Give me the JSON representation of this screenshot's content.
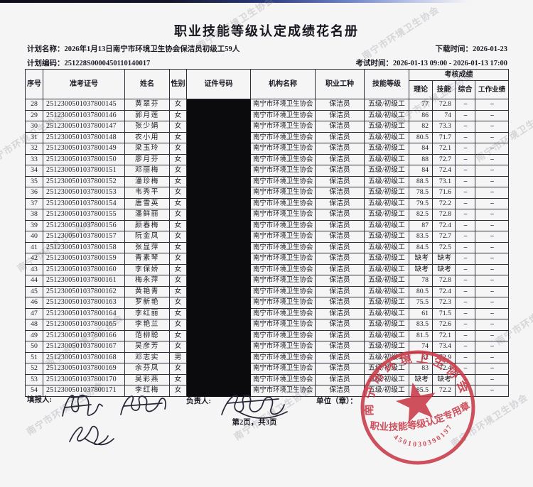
{
  "title": "职业技能等级认定成绩花名册",
  "meta": {
    "plan_name_label": "计划名称：",
    "plan_name": "2026年1月13日南宁市环境卫生协会保洁员初级工59人",
    "download_label": "下载时间：",
    "download_time": "2026-01-23",
    "plan_code_label": "计划编码：",
    "plan_code": "251228S0000450110140017",
    "exam_label": "考试时间：",
    "exam_time": "2026-01-13 09:00 - 2026-01-13 17:00"
  },
  "table": {
    "columns": [
      "序号",
      "准考证号",
      "姓名",
      "性别",
      "证件号码",
      "机构名称",
      "职业工种",
      "技能等级"
    ],
    "score_group": "考核成绩",
    "score_columns": [
      "理论",
      "技能",
      "综合",
      "工作业绩"
    ],
    "rows": [
      {
        "no": "28",
        "ticket": "2512300501037800145",
        "name": "黄翠芬",
        "gender": "女",
        "org": "南宁市环境卫生协会",
        "occupation": "保洁员",
        "level": "五级/初级工",
        "theory": "77",
        "skill": "72.8",
        "comprehensive": "--",
        "work": "--"
      },
      {
        "no": "29",
        "ticket": "2512300501037800146",
        "name": "郭月莲",
        "gender": "女",
        "org": "南宁市环境卫生协会",
        "occupation": "保洁员",
        "level": "五级/初级工",
        "theory": "86",
        "skill": "74",
        "comprehensive": "--",
        "work": "--"
      },
      {
        "no": "30",
        "ticket": "2512300501037800147",
        "name": "张少娟",
        "gender": "女",
        "org": "南宁市环境卫生协会",
        "occupation": "保洁员",
        "level": "五级/初级工",
        "theory": "82",
        "skill": "73.3",
        "comprehensive": "--",
        "work": "--"
      },
      {
        "no": "31",
        "ticket": "2512300501037800148",
        "name": "农小用",
        "gender": "女",
        "org": "南宁市环境卫生协会",
        "occupation": "保洁员",
        "level": "五级/初级工",
        "theory": "80.5",
        "skill": "71.7",
        "comprehensive": "--",
        "work": "--"
      },
      {
        "no": "32",
        "ticket": "2512300501037800149",
        "name": "梁玉玲",
        "gender": "女",
        "org": "南宁市环境卫生协会",
        "occupation": "保洁员",
        "level": "五级/初级工",
        "theory": "84",
        "skill": "72.1",
        "comprehensive": "--",
        "work": "--"
      },
      {
        "no": "33",
        "ticket": "2512300501037800150",
        "name": "廖月芬",
        "gender": "女",
        "org": "南宁市环境卫生协会",
        "occupation": "保洁员",
        "level": "五级/初级工",
        "theory": "88",
        "skill": "72.7",
        "comprehensive": "--",
        "work": "--"
      },
      {
        "no": "34",
        "ticket": "2512300501037800151",
        "name": "邓丽梅",
        "gender": "女",
        "org": "南宁市环境卫生协会",
        "occupation": "保洁员",
        "level": "五级/初级工",
        "theory": "84",
        "skill": "72.4",
        "comprehensive": "--",
        "work": "--"
      },
      {
        "no": "35",
        "ticket": "2512300501037800152",
        "name": "潘珍梅",
        "gender": "女",
        "org": "南宁市环境卫生协会",
        "occupation": "保洁员",
        "level": "五级/初级工",
        "theory": "88.5",
        "skill": "73.1",
        "comprehensive": "--",
        "work": "--"
      },
      {
        "no": "36",
        "ticket": "2512300501037800153",
        "name": "韦秀平",
        "gender": "女",
        "org": "南宁市环境卫生协会",
        "occupation": "保洁员",
        "level": "五级/初级工",
        "theory": "78.5",
        "skill": "71.6",
        "comprehensive": "--",
        "work": "--"
      },
      {
        "no": "37",
        "ticket": "2512300501037800154",
        "name": "唐雪英",
        "gender": "女",
        "org": "南宁市环境卫生协会",
        "occupation": "保洁员",
        "level": "五级/初级工",
        "theory": "79.5",
        "skill": "72.2",
        "comprehensive": "--",
        "work": "--"
      },
      {
        "no": "38",
        "ticket": "2512300501037800155",
        "name": "潘鲜丽",
        "gender": "女",
        "org": "南宁市环境卫生协会",
        "occupation": "保洁员",
        "level": "五级/初级工",
        "theory": "82.5",
        "skill": "72.8",
        "comprehensive": "--",
        "work": "--"
      },
      {
        "no": "39",
        "ticket": "2512300501037800156",
        "name": "颜春梅",
        "gender": "女",
        "org": "南宁市环境卫生协会",
        "occupation": "保洁员",
        "level": "五级/初级工",
        "theory": "87",
        "skill": "72.4",
        "comprehensive": "--",
        "work": "--"
      },
      {
        "no": "40",
        "ticket": "2512300501037800157",
        "name": "阮金凤",
        "gender": "女",
        "org": "南宁市环境卫生协会",
        "occupation": "保洁员",
        "level": "五级/初级工",
        "theory": "83.5",
        "skill": "72.7",
        "comprehensive": "--",
        "work": "--"
      },
      {
        "no": "41",
        "ticket": "2512300501037800158",
        "name": "张显萍",
        "gender": "女",
        "org": "南宁市环境卫生协会",
        "occupation": "保洁员",
        "level": "五级/初级工",
        "theory": "84.5",
        "skill": "72.5",
        "comprehensive": "--",
        "work": "--"
      },
      {
        "no": "42",
        "ticket": "2512300501037800159",
        "name": "青素琴",
        "gender": "女",
        "org": "南宁市环境卫生协会",
        "occupation": "保洁员",
        "level": "五级/初级工",
        "theory": "缺考",
        "skill": "缺考",
        "comprehensive": "--",
        "work": "--"
      },
      {
        "no": "43",
        "ticket": "2512300501037800160",
        "name": "李保娇",
        "gender": "女",
        "org": "南宁市环境卫生协会",
        "occupation": "保洁员",
        "level": "五级/初级工",
        "theory": "缺考",
        "skill": "缺考",
        "comprehensive": "--",
        "work": "--"
      },
      {
        "no": "44",
        "ticket": "2512300501037800161",
        "name": "梅永萍",
        "gender": "女",
        "org": "南宁市环境卫生协会",
        "occupation": "保洁员",
        "level": "五级/初级工",
        "theory": "78",
        "skill": "72.8",
        "comprehensive": "--",
        "work": "--"
      },
      {
        "no": "45",
        "ticket": "2512300501037800162",
        "name": "黄艳青",
        "gender": "女",
        "org": "南宁市环境卫生协会",
        "occupation": "保洁员",
        "level": "五级/初级工",
        "theory": "80.5",
        "skill": "72.4",
        "comprehensive": "--",
        "work": "--"
      },
      {
        "no": "46",
        "ticket": "2512300501037800163",
        "name": "罗新艳",
        "gender": "女",
        "org": "南宁市环境卫生协会",
        "occupation": "保洁员",
        "level": "五级/初级工",
        "theory": "75.5",
        "skill": "72.3",
        "comprehensive": "--",
        "work": "--"
      },
      {
        "no": "47",
        "ticket": "2512300501037800164",
        "name": "李红丽",
        "gender": "女",
        "org": "南宁市环境卫生协会",
        "occupation": "保洁员",
        "level": "五级/初级工",
        "theory": "61",
        "skill": "71.5",
        "comprehensive": "--",
        "work": "--"
      },
      {
        "no": "48",
        "ticket": "2512300501037800165",
        "name": "李艳兰",
        "gender": "女",
        "org": "南宁市环境卫生协会",
        "occupation": "保洁员",
        "level": "五级/初级工",
        "theory": "83.5",
        "skill": "72.6",
        "comprehensive": "--",
        "work": "--"
      },
      {
        "no": "49",
        "ticket": "2512300501037800166",
        "name": "范柳聪",
        "gender": "女",
        "org": "南宁市环境卫生协会",
        "occupation": "保洁员",
        "level": "五级/初级工",
        "theory": "81.5",
        "skill": "72.1",
        "comprehensive": "--",
        "work": "--"
      },
      {
        "no": "50",
        "ticket": "2512300501037800167",
        "name": "吴彦芳",
        "gender": "女",
        "org": "南宁市环境卫生协会",
        "occupation": "保洁员",
        "level": "五级/初级工",
        "theory": "74",
        "skill": "73.4",
        "comprehensive": "--",
        "work": "--"
      },
      {
        "no": "51",
        "ticket": "2512300501037800168",
        "name": "邓志实",
        "gender": "男",
        "org": "南宁市环境卫生协会",
        "occupation": "保洁员",
        "level": "五级/初级工",
        "theory": "82",
        "skill": "72.9",
        "comprehensive": "--",
        "work": "--"
      },
      {
        "no": "52",
        "ticket": "2512300501037800169",
        "name": "余芬凤",
        "gender": "女",
        "org": "南宁市环境卫生协会",
        "occupation": "保洁员",
        "level": "五级/初级工",
        "theory": "83",
        "skill": "72.4",
        "comprehensive": "--",
        "work": "--"
      },
      {
        "no": "53",
        "ticket": "2512300501037800170",
        "name": "吴彩燕",
        "gender": "女",
        "org": "南宁市环境卫生协会",
        "occupation": "保洁员",
        "level": "五级/初级工",
        "theory": "缺考",
        "skill": "缺考",
        "comprehensive": "--",
        "work": "--"
      },
      {
        "no": "54",
        "ticket": "2512300501037800171",
        "name": "李红梅",
        "gender": "女",
        "org": "南宁市环境卫生协会",
        "occupation": "保洁员",
        "level": "五级/初级工",
        "theory": "85.5",
        "skill": "72.2",
        "comprehensive": "--",
        "work": "--"
      }
    ]
  },
  "footer": {
    "filler_label": "填报人:",
    "manager_label": "负责人:",
    "unit_label": "单位（章）：",
    "page_info": "第2页，共3页"
  },
  "stamp": {
    "ring_text": "南宁市环境卫生协会",
    "title": "职业技能等级认定专用章",
    "number": "4501030390197",
    "color": "#c93a47"
  },
  "watermark": {
    "text": "南宁市环境卫生协会"
  }
}
